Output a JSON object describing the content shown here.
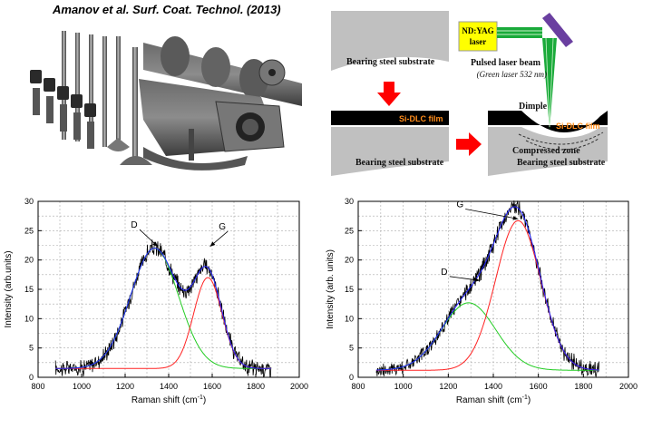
{
  "citation": "Amanov  et al. Surf.  Coat.  Technol.  (2013)",
  "diagram": {
    "laser_label_1": "ND:YAG",
    "laser_label_2": "laser",
    "beam_label": "Pulsed laser beam",
    "beam_sublabel": "(Green laser 532 nm)",
    "dimple_label": "Dimple",
    "film_label": "Si-DLC film",
    "film_label_right": "Si-DLC film",
    "compressed_label": "Compressed zone",
    "substrate_label_top": "Bearing steel substrate",
    "substrate_label_bottom": "Bearing steel substrate",
    "substrate_label_right": "Bearing steel substrate",
    "colors": {
      "laser_box": "#ffff00",
      "beam": "#1aaa3a",
      "mirror": "#6a3fa0",
      "arrow": "#ff0000",
      "substrate": "#c0c0c0",
      "film": "#000000",
      "film_text": "#ff8c1a"
    }
  },
  "chart_data": [
    {
      "type": "line",
      "xlabel_main": "Raman shift (cm",
      "xlabel_sup": "-1",
      "xlabel_end": ")",
      "ylabel": "Intensity (arb.units)",
      "xlim": [
        800,
        2000
      ],
      "ylim": [
        0,
        30
      ],
      "xticks": [
        "800",
        "1000",
        "1200",
        "1400",
        "1600",
        "1800",
        "2000"
      ],
      "yticks": [
        "0",
        "5",
        "10",
        "15",
        "20",
        "25",
        "30"
      ],
      "annotations": [
        {
          "text": "D",
          "x": 1350,
          "y": 22.3,
          "label_x": 1250,
          "label_y": 25.5
        },
        {
          "text": "G",
          "x": 1590,
          "y": 22.3,
          "label_x": 1655,
          "label_y": 25.2
        }
      ],
      "peaks": {
        "d_center": 1335,
        "d_height": 20.5,
        "d_width": 110,
        "g_center": 1580,
        "g_height": 15.5,
        "g_width": 65,
        "baseline": 1.5
      },
      "data_range": [
        880,
        1870
      ]
    },
    {
      "type": "line",
      "xlabel_main": "Raman shift (cm",
      "xlabel_sup": "-1",
      "xlabel_end": ")",
      "ylabel": "Intensity (arb. units)",
      "xlim": [
        800,
        2000
      ],
      "ylim": [
        0,
        30
      ],
      "xticks": [
        "800",
        "1000",
        "1200",
        "1400",
        "1600",
        "1800",
        "2000"
      ],
      "yticks": [
        "0",
        "5",
        "10",
        "15",
        "20",
        "25",
        "30"
      ],
      "annotations": [
        {
          "text": "G",
          "x": 1510,
          "y": 27.0,
          "label_x": 1260,
          "label_y": 29.0
        },
        {
          "text": "D",
          "x": 1340,
          "y": 16.5,
          "label_x": 1190,
          "label_y": 17.5
        }
      ],
      "peaks": {
        "d_center": 1290,
        "d_height": 11.5,
        "d_width": 120,
        "g_center": 1510,
        "g_height": 25.5,
        "g_width": 100,
        "baseline": 1.2
      },
      "data_range": [
        880,
        1870
      ]
    }
  ]
}
